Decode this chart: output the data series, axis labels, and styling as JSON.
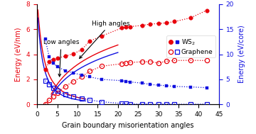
{
  "xlabel": "Grain boundary misorientation angles",
  "ylabel_left": "Energy (eV/nm)",
  "ylabel_right": "Energy (eV/core)",
  "xlim": [
    0,
    45
  ],
  "ylim_left": [
    0,
    8
  ],
  "ylim_right": [
    0,
    20
  ],
  "ws2_red_x": [
    2,
    3,
    4,
    5,
    7,
    9,
    11,
    13,
    16,
    21,
    22,
    23,
    26,
    28,
    30,
    32,
    34,
    38,
    42
  ],
  "ws2_red_y": [
    2.8,
    3.4,
    3.6,
    3.7,
    3.85,
    4.05,
    4.35,
    5.05,
    5.45,
    6.1,
    6.15,
    6.2,
    6.3,
    6.4,
    6.45,
    6.5,
    6.6,
    6.9,
    7.5
  ],
  "ws2_blue_x": [
    2,
    3,
    4,
    5,
    7,
    9,
    11,
    13,
    16,
    21,
    22,
    23,
    26,
    28,
    30,
    32,
    34,
    38,
    42
  ],
  "ws2_blue_y": [
    13.0,
    9.5,
    8.25,
    7.5,
    6.75,
    6.25,
    5.9,
    5.5,
    5.0,
    4.75,
    4.6,
    4.5,
    4.25,
    4.0,
    3.85,
    3.75,
    3.6,
    3.5,
    3.35
  ],
  "gr_red_x": [
    2,
    3,
    4,
    5,
    7,
    9,
    11,
    13,
    16,
    21,
    22,
    23,
    26,
    28,
    30,
    32,
    34,
    38,
    42
  ],
  "gr_red_y": [
    0.05,
    0.35,
    0.65,
    0.95,
    1.45,
    1.85,
    2.2,
    2.65,
    3.05,
    3.25,
    3.3,
    3.35,
    3.4,
    3.42,
    3.3,
    3.45,
    3.5,
    3.52,
    3.5
  ],
  "gr_blue_x": [
    2,
    3,
    4,
    5,
    7,
    9,
    11,
    13,
    16,
    21,
    22,
    23,
    26,
    28,
    30,
    32,
    34,
    38,
    42
  ],
  "gr_blue_y": [
    4.75,
    4.0,
    3.25,
    2.75,
    2.0,
    1.6,
    1.25,
    0.9,
    0.55,
    0.2,
    0.15,
    0.1,
    0.08,
    0.05,
    0.02,
    0.1,
    0.05,
    0.05,
    0.08
  ],
  "ws2_color": "#e8000b",
  "gr_color": "#1010e0",
  "annotation_low": "Low angles",
  "annotation_high": "High angles"
}
